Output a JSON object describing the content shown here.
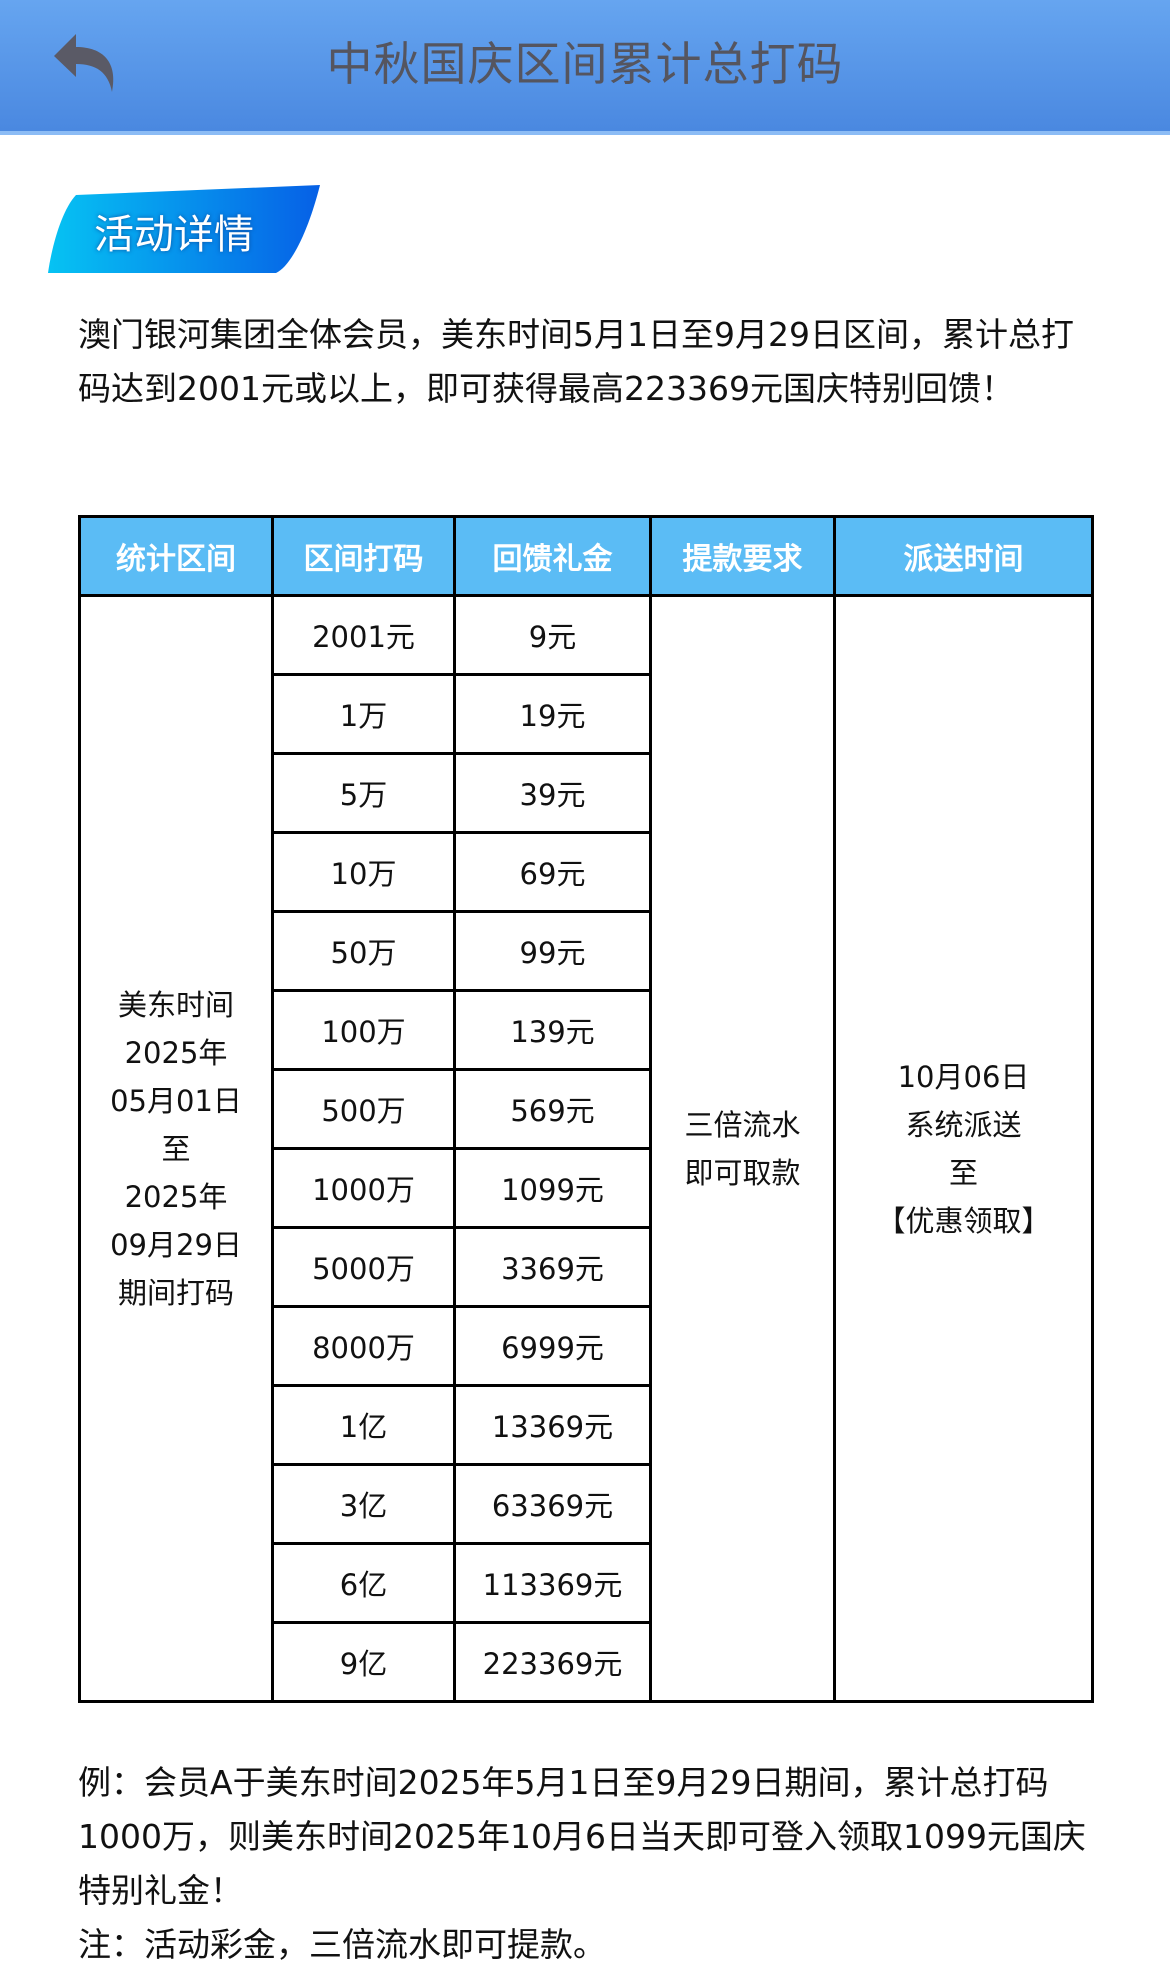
{
  "header": {
    "title": "中秋国庆区间累计总打码",
    "back_icon": "back-arrow-icon"
  },
  "section": {
    "badge_label": "活动详情"
  },
  "intro": "澳门银河集团全体会员，美东时间5月1日至9月29日区间，累计总打码达到2001元或以上，即可获得最高223369元国庆特别回馈！",
  "table": {
    "columns": [
      "统计区间",
      "区间打码",
      "回馈礼金",
      "提款要求",
      "派送时间"
    ],
    "period_lines": [
      "美东时间",
      "2025年",
      "05月01日",
      "至",
      "2025年",
      "09月29日",
      "期间打码"
    ],
    "withdraw_lines": [
      "三倍流水",
      "即可取款"
    ],
    "delivery_lines": [
      "10月06日",
      "系统派送",
      "至",
      "【优惠领取】"
    ],
    "rows": [
      {
        "bet": "2001元",
        "bonus": "9元"
      },
      {
        "bet": "1万",
        "bonus": "19元"
      },
      {
        "bet": "5万",
        "bonus": "39元"
      },
      {
        "bet": "10万",
        "bonus": "69元"
      },
      {
        "bet": "50万",
        "bonus": "99元"
      },
      {
        "bet": "100万",
        "bonus": "139元"
      },
      {
        "bet": "500万",
        "bonus": "569元"
      },
      {
        "bet": "1000万",
        "bonus": "1099元"
      },
      {
        "bet": "5000万",
        "bonus": "3369元"
      },
      {
        "bet": "8000万",
        "bonus": "6999元"
      },
      {
        "bet": "1亿",
        "bonus": "13369元"
      },
      {
        "bet": "3亿",
        "bonus": "63369元"
      },
      {
        "bet": "6亿",
        "bonus": "113369元"
      },
      {
        "bet": "9亿",
        "bonus": "223369元"
      }
    ]
  },
  "notes": {
    "example": "例：会员A于美东时间2025年5月1日至9月29日期间，累计总打码1000万，则美东时间2025年10月6日当天即可登入领取1099元国庆特别礼金！",
    "remark": "注：活动彩金，三倍流水即可提款。"
  },
  "colors": {
    "header_bg": "#5a97e8",
    "table_header_bg": "#5bbcf5",
    "badge": "#0a74e8"
  }
}
